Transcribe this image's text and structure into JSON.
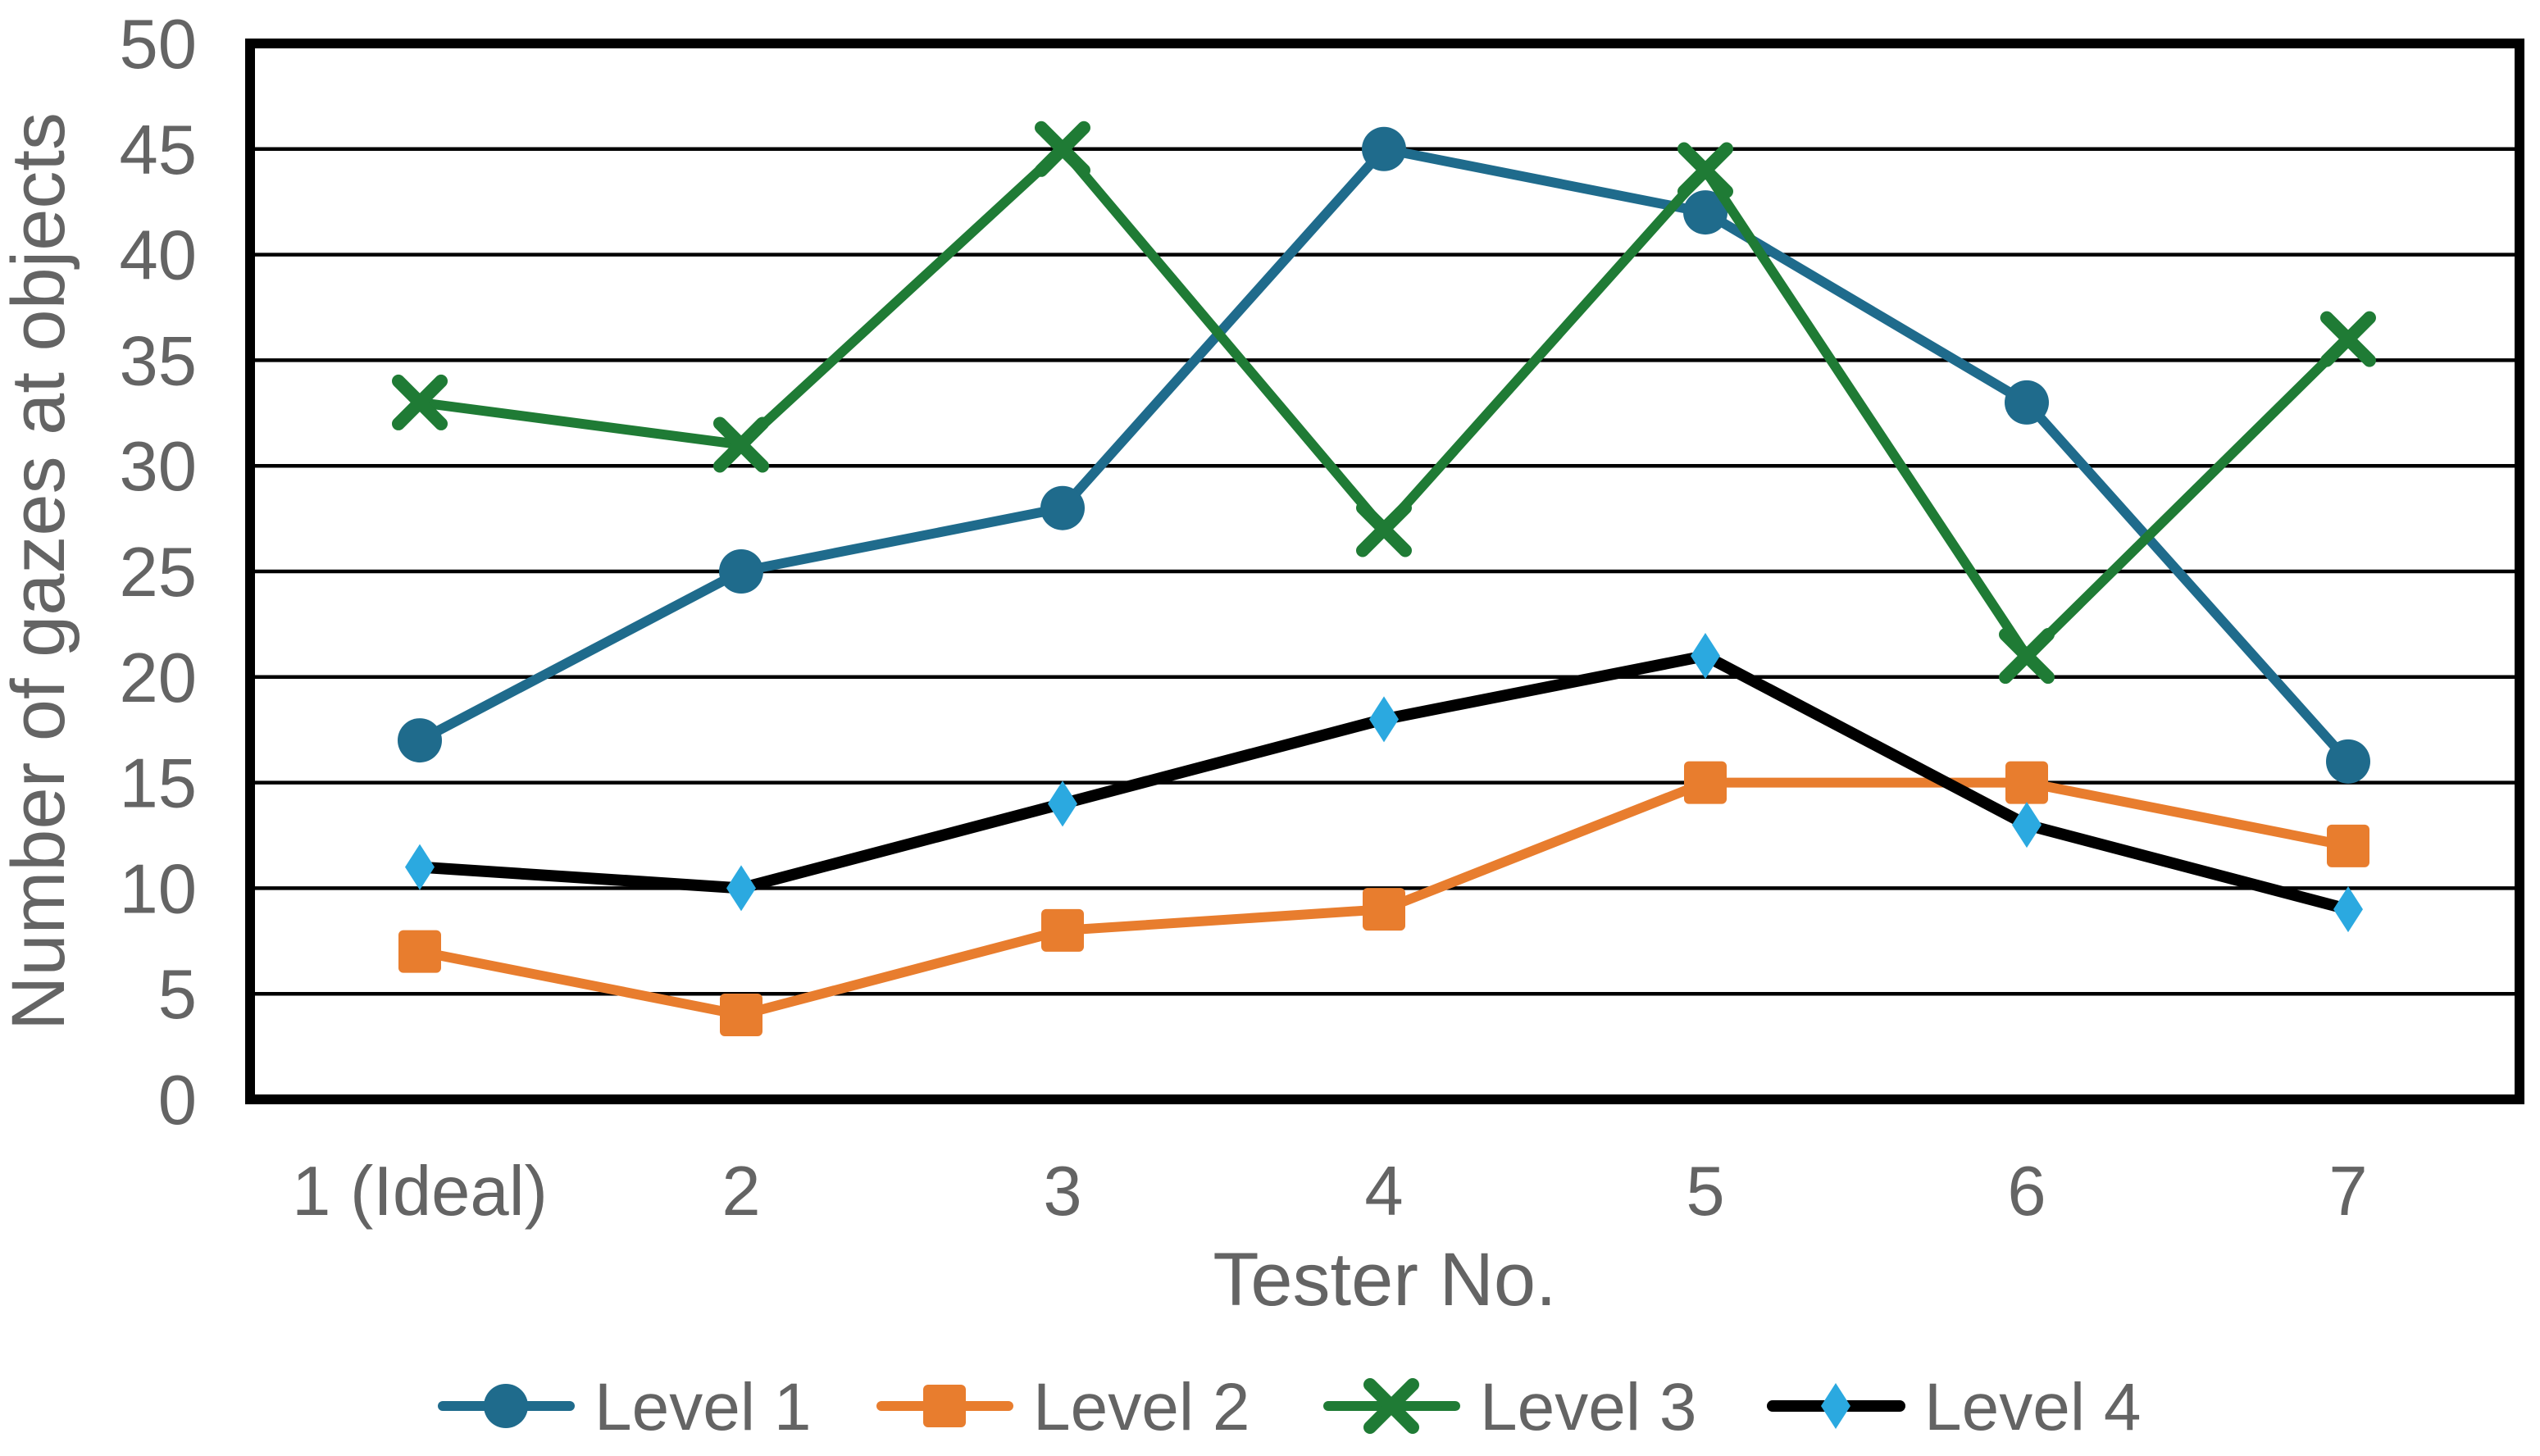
{
  "chart_data": {
    "type": "line",
    "title": "",
    "categories": [
      "1 (Ideal)",
      "2",
      "3",
      "4",
      "5",
      "6",
      "7"
    ],
    "series": [
      {
        "name": "Level 1",
        "marker": "circle",
        "color": "#1F6B8C",
        "marker_color": "#1F6B8C",
        "values": [
          17,
          25,
          28,
          45,
          42,
          33,
          16
        ]
      },
      {
        "name": "Level 2",
        "marker": "square",
        "color": "#E87D2E",
        "marker_color": "#E87D2E",
        "values": [
          7,
          4,
          8,
          9,
          15,
          15,
          12
        ]
      },
      {
        "name": "Level 3",
        "marker": "x",
        "color": "#1F7B35",
        "marker_color": "#1F7B35",
        "values": [
          33,
          31,
          45,
          27,
          44,
          21,
          36
        ]
      },
      {
        "name": "Level 4",
        "marker": "diamond",
        "color": "#000000",
        "marker_color": "#2BA9E0",
        "values": [
          11,
          10,
          14,
          18,
          21,
          13,
          9
        ]
      }
    ],
    "xlabel": "Tester No.",
    "ylabel": "Number of gazes at objects",
    "ylim": [
      0,
      50
    ],
    "yticks": [
      0,
      5,
      10,
      15,
      20,
      25,
      30,
      35,
      40,
      45,
      50
    ],
    "ytick_step": 5,
    "grid": true,
    "grid_color": "#000000",
    "axis_border_color": "#000000",
    "text_color": "#646464",
    "legend_position": "bottom"
  }
}
